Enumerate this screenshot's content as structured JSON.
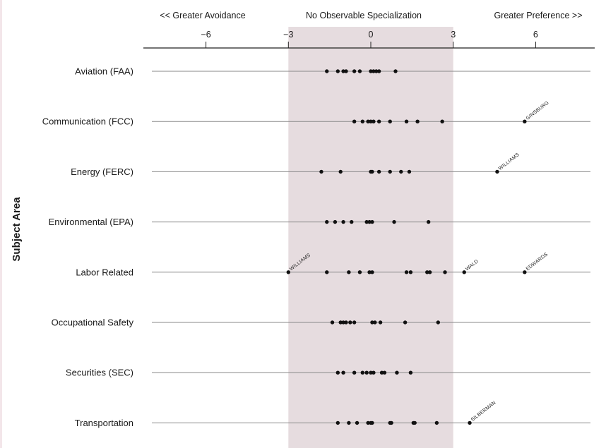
{
  "chart_data": {
    "type": "scatter",
    "ylabel": "Subject Area",
    "headers": {
      "left": "<< Greater Avoidance",
      "center": "No Observable Specialization",
      "right": "Greater Preference >>"
    },
    "x_ticks": [
      "−6",
      "−3",
      "0",
      "3",
      "6"
    ],
    "x_tick_values": [
      -6,
      -3,
      0,
      3,
      6
    ],
    "xlim": [
      -8.5,
      8.1
    ],
    "shaded_band": [
      -3,
      3
    ],
    "colors": {
      "band": "#e6dcdf",
      "points": "#111111",
      "lines": "#888888"
    },
    "categories": [
      "Aviation (FAA)",
      "Communication (FCC)",
      "Energy (FERC)",
      "Environmental (EPA)",
      "Labor Related",
      "Occupational Safety",
      "Securities (SEC)",
      "Transportation"
    ],
    "points": [
      [
        -1.6,
        -1.2,
        -1.0,
        -0.9,
        -0.6,
        -0.4,
        0.0,
        0.1,
        0.2,
        0.3,
        0.9
      ],
      [
        -0.6,
        -0.3,
        -0.1,
        0.0,
        0.1,
        0.3,
        0.7,
        1.3,
        1.7,
        2.6,
        5.6
      ],
      [
        -1.8,
        -1.1,
        0.0,
        0.05,
        0.3,
        0.7,
        1.1,
        1.4,
        4.6
      ],
      [
        -1.6,
        -1.3,
        -1.0,
        -0.7,
        -0.15,
        -0.05,
        0.05,
        0.85,
        2.1
      ],
      [
        -3.0,
        -1.6,
        -0.8,
        -0.4,
        -0.05,
        0.05,
        1.3,
        1.45,
        2.05,
        2.15,
        2.7,
        3.4,
        5.6
      ],
      [
        -1.4,
        -1.1,
        -1.0,
        -0.9,
        -0.75,
        -0.6,
        0.05,
        0.15,
        0.35,
        1.25,
        2.45
      ],
      [
        -1.2,
        -1.0,
        -0.6,
        -0.3,
        -0.15,
        0.0,
        0.1,
        0.4,
        0.5,
        0.95,
        1.45
      ],
      [
        -1.2,
        -0.8,
        -0.5,
        -0.1,
        0.0,
        0.05,
        0.7,
        0.75,
        1.55,
        1.6,
        2.4,
        3.6
      ]
    ],
    "annotations": [
      {
        "category_index": 1,
        "x": 5.6,
        "label": "GINSBURG"
      },
      {
        "category_index": 2,
        "x": 4.6,
        "label": "WILLIAMS"
      },
      {
        "category_index": 4,
        "x": -3.0,
        "label": "WILLIAMS"
      },
      {
        "category_index": 4,
        "x": 3.4,
        "label": "WALD"
      },
      {
        "category_index": 4,
        "x": 5.6,
        "label": "EDWARDS"
      },
      {
        "category_index": 7,
        "x": 3.6,
        "label": "SILBERMAN"
      }
    ]
  }
}
